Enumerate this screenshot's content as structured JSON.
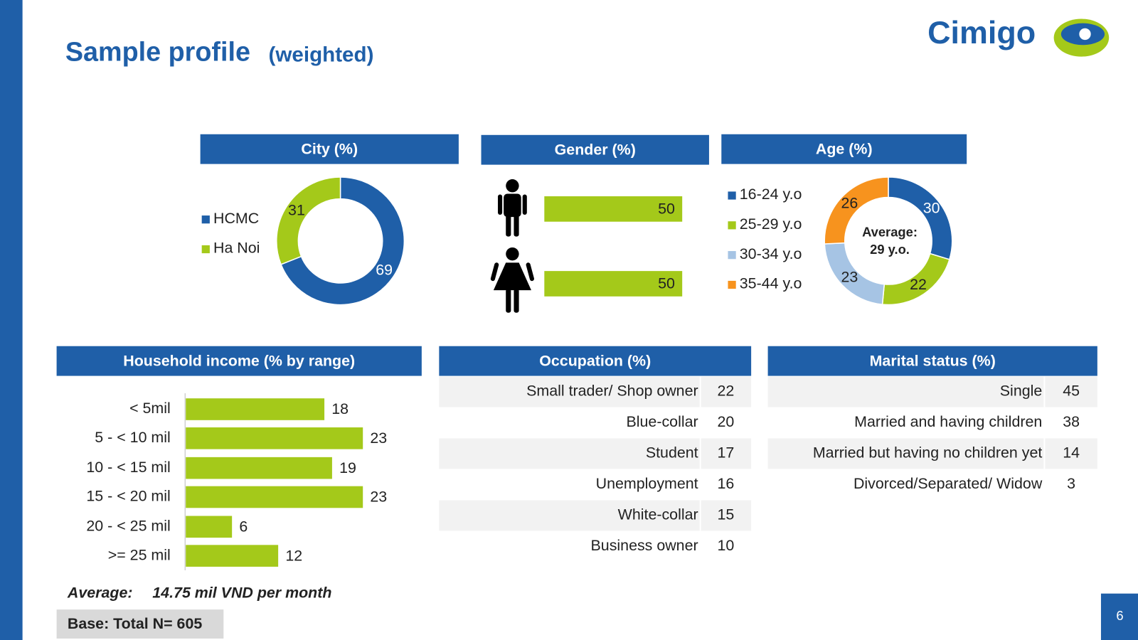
{
  "header": {
    "title": "Sample profile",
    "subtitle": "(weighted)",
    "logo": "Cimigo"
  },
  "chart_data": [
    {
      "type": "donut",
      "title": "City (%)",
      "categories": [
        "HCMC",
        "Ha Noi"
      ],
      "values": [
        69,
        31
      ],
      "colors": [
        "#1f5fa8",
        "#a4c91a"
      ],
      "legend": "left"
    },
    {
      "type": "bar",
      "title": "Gender (%)",
      "categories": [
        null,
        null
      ],
      "values": [
        50,
        50
      ],
      "color": "#a4c91a"
    },
    {
      "type": "donut",
      "title": "Age (%)",
      "categories": [
        "16-24 y.o",
        "25-29 y.o",
        "30-34 y.o",
        "35-44 y.o"
      ],
      "values": [
        30,
        22,
        23,
        26
      ],
      "colors": [
        "#1f5fa8",
        "#a4c91a",
        "#a6c4e4",
        "#f7931e"
      ],
      "legend": "left",
      "center_label": [
        "Average:",
        "29 y.o."
      ]
    },
    {
      "type": "bar",
      "title": "Household income (% by range)",
      "categories": [
        "< 5mil",
        "5 - < 10 mil",
        "10 - < 15 mil",
        "15 - < 20 mil",
        "20 - < 25 mil",
        ">= 25 mil"
      ],
      "values": [
        18,
        23,
        19,
        23,
        6,
        12
      ],
      "color": "#a4c91a",
      "annotation": [
        "Average:",
        "14.75 mil VND per month"
      ]
    }
  ],
  "tables": [
    {
      "title": "Occupation (%)",
      "rows": [
        {
          "label": "Small trader/ Shop owner",
          "value": 22
        },
        {
          "label": "Blue-collar",
          "value": 20
        },
        {
          "label": "Student",
          "value": 17
        },
        {
          "label": "Unemployment",
          "value": 16
        },
        {
          "label": "White-collar",
          "value": 15
        },
        {
          "label": "Business owner",
          "value": 10
        }
      ]
    },
    {
      "title": "Marital status (%)",
      "rows": [
        {
          "label": "Single",
          "value": 45
        },
        {
          "label": "Married and having children",
          "value": 38
        },
        {
          "label": "Married but having no children yet",
          "value": 14
        },
        {
          "label": "Divorced/Separated/ Widow",
          "value": 3
        }
      ]
    }
  ],
  "footer": {
    "base": "Base: Total N= 605",
    "page": "6"
  }
}
